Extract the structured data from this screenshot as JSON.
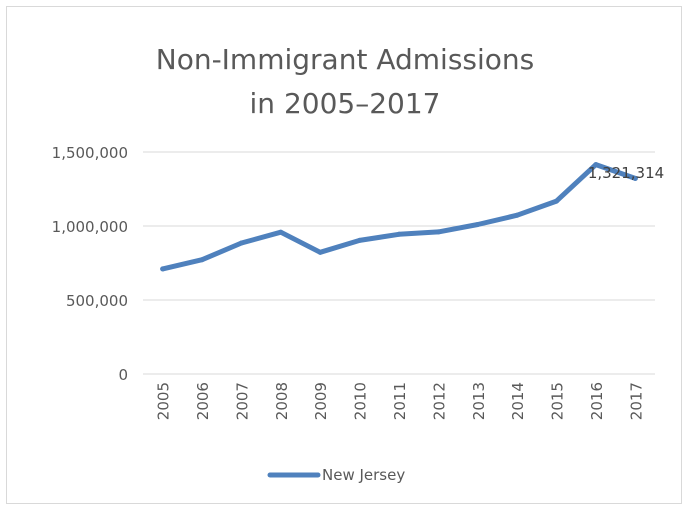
{
  "chart_data": {
    "type": "line",
    "title_line1": "Non-Immigrant Admissions",
    "title_line2": "in 2005–2017",
    "xlabel": "",
    "ylabel": "",
    "ylim": [
      0,
      1500000
    ],
    "yticks": [
      0,
      500000,
      1000000,
      1500000
    ],
    "ytick_labels": [
      "0",
      "500,000",
      "1,000,000",
      "1,500,000"
    ],
    "categories": [
      "2005",
      "2006",
      "2007",
      "2008",
      "2009",
      "2010",
      "2011",
      "2012",
      "2013",
      "2014",
      "2015",
      "2016",
      "2017"
    ],
    "series": [
      {
        "name": "New Jersey",
        "color": "#4f81bd",
        "values": [
          710000,
          772000,
          885000,
          958000,
          822000,
          903000,
          944000,
          960000,
          1010000,
          1073000,
          1168000,
          1415000,
          1321314
        ]
      }
    ],
    "data_label": {
      "index": 12,
      "text": "1,321,314"
    },
    "grid": true,
    "legend_position": "bottom"
  }
}
